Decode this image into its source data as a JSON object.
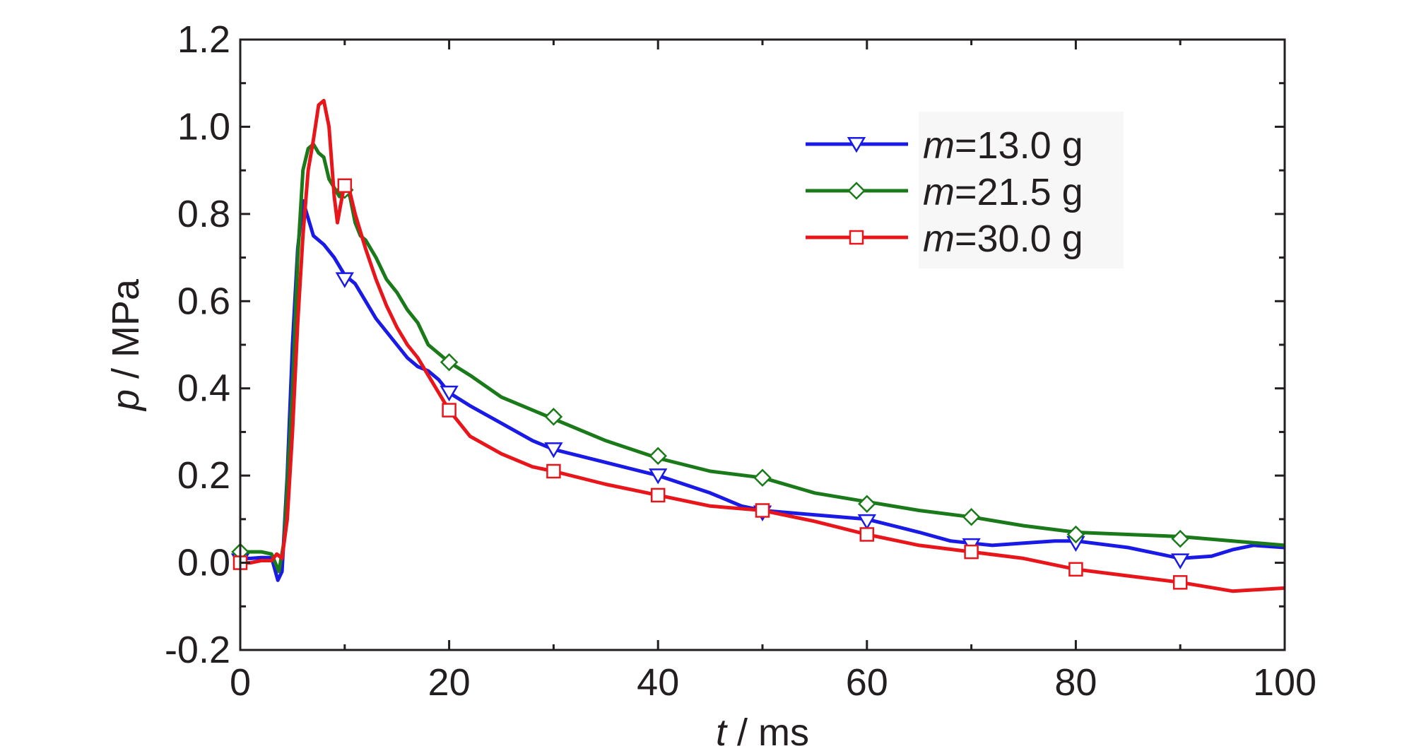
{
  "chart_data": {
    "type": "line",
    "xlabel": {
      "var": "t",
      "unit": " / ms"
    },
    "ylabel": {
      "var": "p",
      "unit": " / MPa"
    },
    "xlim": [
      0,
      100
    ],
    "ylim": [
      -0.2,
      1.2
    ],
    "xticks": [
      "0",
      "20",
      "40",
      "60",
      "80",
      "100"
    ],
    "yticks": [
      "-0.2",
      "0.0",
      "0.2",
      "0.4",
      "0.6",
      "0.8",
      "1.0",
      "1.2"
    ],
    "grid": false,
    "legend_position": "top-right",
    "series": [
      {
        "name_var": "m",
        "name_rest": "=13.0 g",
        "color": "#1a1ae6",
        "marker": "triangle-down",
        "points": [
          [
            0,
            0.01
          ],
          [
            1,
            0.01
          ],
          [
            2,
            0.012
          ],
          [
            3,
            0.012
          ],
          [
            3.6,
            -0.04
          ],
          [
            4,
            -0.02
          ],
          [
            4.5,
            0.2
          ],
          [
            5,
            0.5
          ],
          [
            5.5,
            0.72
          ],
          [
            6,
            0.83
          ],
          [
            6.5,
            0.79
          ],
          [
            7,
            0.75
          ],
          [
            8,
            0.73
          ],
          [
            9,
            0.7
          ],
          [
            10,
            0.66
          ],
          [
            11,
            0.64
          ],
          [
            12,
            0.6
          ],
          [
            13,
            0.56
          ],
          [
            14,
            0.53
          ],
          [
            15,
            0.5
          ],
          [
            16,
            0.47
          ],
          [
            17,
            0.45
          ],
          [
            18,
            0.44
          ],
          [
            19,
            0.42
          ],
          [
            20,
            0.39
          ],
          [
            22,
            0.36
          ],
          [
            25,
            0.32
          ],
          [
            28,
            0.28
          ],
          [
            30,
            0.26
          ],
          [
            35,
            0.23
          ],
          [
            40,
            0.2
          ],
          [
            45,
            0.16
          ],
          [
            48,
            0.13
          ],
          [
            50,
            0.12
          ],
          [
            55,
            0.11
          ],
          [
            60,
            0.1
          ],
          [
            65,
            0.07
          ],
          [
            68,
            0.05
          ],
          [
            70,
            0.045
          ],
          [
            72,
            0.04
          ],
          [
            75,
            0.045
          ],
          [
            78,
            0.05
          ],
          [
            80,
            0.05
          ],
          [
            85,
            0.035
          ],
          [
            88,
            0.02
          ],
          [
            90,
            0.01
          ],
          [
            93,
            0.015
          ],
          [
            95,
            0.03
          ],
          [
            97,
            0.04
          ],
          [
            100,
            0.035
          ]
        ],
        "markers": [
          [
            0,
            0.005
          ],
          [
            10,
            0.65
          ],
          [
            20,
            0.39
          ],
          [
            30,
            0.26
          ],
          [
            40,
            0.2
          ],
          [
            50,
            0.115
          ],
          [
            60,
            0.095
          ],
          [
            70,
            0.04
          ],
          [
            80,
            0.045
          ],
          [
            90,
            0.005
          ]
        ]
      },
      {
        "name_var": "m",
        "name_rest": "=21.5 g",
        "color": "#1a7a1a",
        "marker": "diamond",
        "points": [
          [
            0,
            0.025
          ],
          [
            1,
            0.025
          ],
          [
            2,
            0.025
          ],
          [
            3,
            0.02
          ],
          [
            3.7,
            -0.02
          ],
          [
            4.2,
            0.05
          ],
          [
            5,
            0.4
          ],
          [
            5.5,
            0.7
          ],
          [
            6,
            0.9
          ],
          [
            6.5,
            0.95
          ],
          [
            7,
            0.96
          ],
          [
            7.5,
            0.94
          ],
          [
            8,
            0.93
          ],
          [
            8.5,
            0.88
          ],
          [
            9,
            0.86
          ],
          [
            9.5,
            0.84
          ],
          [
            10,
            0.86
          ],
          [
            10.5,
            0.84
          ],
          [
            11,
            0.78
          ],
          [
            11.5,
            0.75
          ],
          [
            12,
            0.74
          ],
          [
            13,
            0.7
          ],
          [
            14,
            0.65
          ],
          [
            15,
            0.62
          ],
          [
            16,
            0.58
          ],
          [
            17,
            0.55
          ],
          [
            18,
            0.5
          ],
          [
            20,
            0.46
          ],
          [
            22,
            0.43
          ],
          [
            25,
            0.38
          ],
          [
            28,
            0.35
          ],
          [
            30,
            0.33
          ],
          [
            35,
            0.28
          ],
          [
            40,
            0.24
          ],
          [
            45,
            0.21
          ],
          [
            50,
            0.195
          ],
          [
            55,
            0.16
          ],
          [
            60,
            0.14
          ],
          [
            65,
            0.12
          ],
          [
            70,
            0.105
          ],
          [
            75,
            0.085
          ],
          [
            80,
            0.07
          ],
          [
            85,
            0.065
          ],
          [
            90,
            0.06
          ],
          [
            95,
            0.05
          ],
          [
            100,
            0.04
          ]
        ],
        "markers": [
          [
            0,
            0.025
          ],
          [
            10,
            0.855
          ],
          [
            20,
            0.46
          ],
          [
            30,
            0.335
          ],
          [
            40,
            0.245
          ],
          [
            50,
            0.195
          ],
          [
            60,
            0.135
          ],
          [
            70,
            0.105
          ],
          [
            80,
            0.065
          ],
          [
            90,
            0.055
          ]
        ]
      },
      {
        "name_var": "m",
        "name_rest": "=30.0 g",
        "color": "#e8161b",
        "marker": "square",
        "points": [
          [
            0,
            0.0
          ],
          [
            1,
            0.0
          ],
          [
            2,
            0.005
          ],
          [
            3,
            0.005
          ],
          [
            3.5,
            0.02
          ],
          [
            4,
            0.01
          ],
          [
            4.5,
            0.1
          ],
          [
            5,
            0.3
          ],
          [
            5.5,
            0.55
          ],
          [
            6,
            0.75
          ],
          [
            6.5,
            0.9
          ],
          [
            7,
            0.97
          ],
          [
            7.5,
            1.05
          ],
          [
            8,
            1.06
          ],
          [
            8.5,
            1.0
          ],
          [
            9,
            0.84
          ],
          [
            9.3,
            0.78
          ],
          [
            9.6,
            0.82
          ],
          [
            10,
            0.87
          ],
          [
            10.5,
            0.85
          ],
          [
            11,
            0.8
          ],
          [
            12,
            0.72
          ],
          [
            13,
            0.65
          ],
          [
            14,
            0.59
          ],
          [
            15,
            0.54
          ],
          [
            16,
            0.5
          ],
          [
            17,
            0.47
          ],
          [
            18,
            0.43
          ],
          [
            19,
            0.39
          ],
          [
            20,
            0.35
          ],
          [
            22,
            0.29
          ],
          [
            25,
            0.25
          ],
          [
            28,
            0.22
          ],
          [
            30,
            0.21
          ],
          [
            35,
            0.18
          ],
          [
            40,
            0.155
          ],
          [
            45,
            0.13
          ],
          [
            50,
            0.12
          ],
          [
            55,
            0.095
          ],
          [
            60,
            0.065
          ],
          [
            65,
            0.04
          ],
          [
            70,
            0.025
          ],
          [
            75,
            0.01
          ],
          [
            80,
            -0.015
          ],
          [
            85,
            -0.03
          ],
          [
            90,
            -0.045
          ],
          [
            95,
            -0.065
          ],
          [
            100,
            -0.058
          ]
        ],
        "markers": [
          [
            0,
            0.0
          ],
          [
            10,
            0.865
          ],
          [
            20,
            0.35
          ],
          [
            30,
            0.21
          ],
          [
            40,
            0.155
          ],
          [
            50,
            0.12
          ],
          [
            60,
            0.065
          ],
          [
            70,
            0.025
          ],
          [
            80,
            -0.015
          ],
          [
            90,
            -0.045
          ]
        ]
      }
    ]
  }
}
